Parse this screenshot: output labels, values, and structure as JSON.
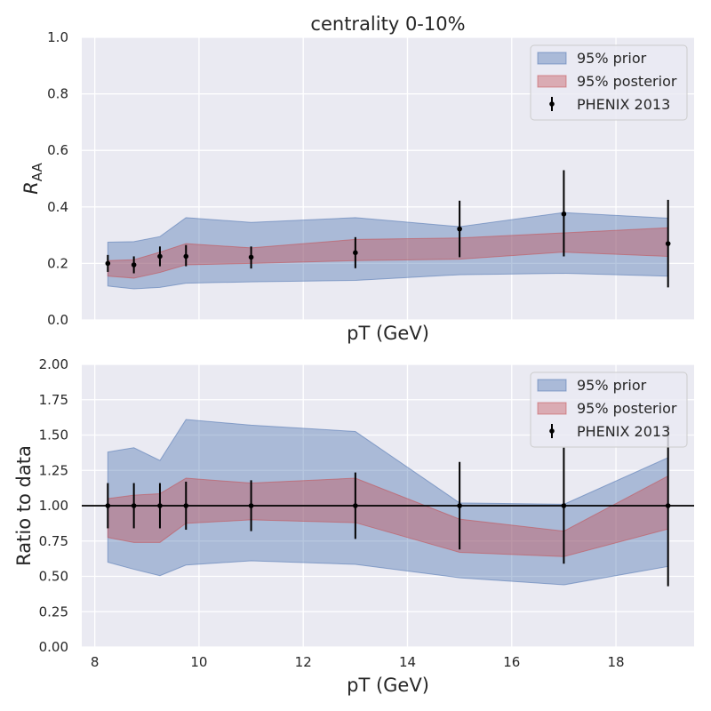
{
  "chart_data": [
    {
      "type": "area",
      "title": "centrality 0-10%",
      "xlabel": "pT (GeV)",
      "ylabel_main": "R",
      "ylabel_sub": "AA",
      "xlim": [
        7.75,
        19.5
      ],
      "ylim": [
        0,
        1.0
      ],
      "xticks": [
        8,
        10,
        12,
        14,
        16,
        18
      ],
      "show_xtick_labels": false,
      "yticks": [
        0.0,
        0.2,
        0.4,
        0.6,
        0.8,
        1.0
      ],
      "ytick_labels": [
        "0.0",
        "0.2",
        "0.4",
        "0.6",
        "0.8",
        "1.0"
      ],
      "grid": true,
      "legend_position": "top-right",
      "colors": {
        "prior": "#4c72b0",
        "posterior": "#c44e52",
        "data": "#000000",
        "background": "#eaeaf2",
        "grid": "#ffffff"
      },
      "series": [
        {
          "name": "95% prior",
          "kind": "band",
          "x": [
            8.25,
            8.75,
            9.25,
            9.75,
            11,
            13,
            15,
            17,
            19
          ],
          "lower": [
            0.12,
            0.11,
            0.115,
            0.13,
            0.135,
            0.14,
            0.16,
            0.165,
            0.155
          ],
          "upper": [
            0.275,
            0.277,
            0.295,
            0.362,
            0.345,
            0.362,
            0.33,
            0.38,
            0.36
          ]
        },
        {
          "name": "95% posterior",
          "kind": "band",
          "x": [
            8.25,
            8.75,
            9.25,
            9.75,
            11,
            13,
            15,
            17,
            19
          ],
          "lower": [
            0.155,
            0.148,
            0.168,
            0.195,
            0.2,
            0.21,
            0.215,
            0.24,
            0.225
          ],
          "upper": [
            0.21,
            0.213,
            0.24,
            0.27,
            0.255,
            0.285,
            0.29,
            0.308,
            0.326
          ]
        },
        {
          "name": "PHENIX 2013",
          "kind": "errorbar",
          "x": [
            8.25,
            8.75,
            9.25,
            9.75,
            11,
            13,
            15,
            17,
            19
          ],
          "y": [
            0.2,
            0.195,
            0.225,
            0.225,
            0.222,
            0.238,
            0.322,
            0.375,
            0.27
          ],
          "yerr_low": [
            0.03,
            0.03,
            0.035,
            0.035,
            0.04,
            0.055,
            0.1,
            0.15,
            0.155
          ],
          "yerr_high": [
            0.03,
            0.03,
            0.035,
            0.04,
            0.038,
            0.055,
            0.1,
            0.155,
            0.155
          ]
        }
      ]
    },
    {
      "type": "area",
      "title": "",
      "xlabel": "pT (GeV)",
      "ylabel_main": "Ratio to data",
      "ylabel_sub": "",
      "xlim": [
        7.75,
        19.5
      ],
      "ylim": [
        0,
        2.0
      ],
      "xticks": [
        8,
        10,
        12,
        14,
        16,
        18
      ],
      "xtick_labels": [
        "8",
        "10",
        "12",
        "14",
        "16",
        "18"
      ],
      "show_xtick_labels": true,
      "yticks": [
        0.0,
        0.25,
        0.5,
        0.75,
        1.0,
        1.25,
        1.5,
        1.75,
        2.0
      ],
      "ytick_labels": [
        "0.00",
        "0.25",
        "0.50",
        "0.75",
        "1.00",
        "1.25",
        "1.50",
        "1.75",
        "2.00"
      ],
      "reference_line": 1.0,
      "grid": true,
      "legend_position": "top-right",
      "colors": {
        "prior": "#4c72b0",
        "posterior": "#c44e52",
        "data": "#000000",
        "background": "#eaeaf2",
        "grid": "#ffffff"
      },
      "series": [
        {
          "name": "95% prior",
          "kind": "band",
          "x": [
            8.25,
            8.75,
            9.25,
            9.75,
            11,
            13,
            15,
            17,
            19
          ],
          "lower": [
            0.6,
            0.55,
            0.505,
            0.58,
            0.61,
            0.585,
            0.49,
            0.44,
            0.57
          ],
          "upper": [
            1.38,
            1.41,
            1.32,
            1.61,
            1.57,
            1.525,
            1.02,
            1.01,
            1.34
          ]
        },
        {
          "name": "95% posterior",
          "kind": "band",
          "x": [
            8.25,
            8.75,
            9.25,
            9.75,
            11,
            13,
            15,
            17,
            19
          ],
          "lower": [
            0.775,
            0.74,
            0.74,
            0.875,
            0.9,
            0.88,
            0.67,
            0.64,
            0.835
          ],
          "upper": [
            1.05,
            1.075,
            1.085,
            1.195,
            1.16,
            1.195,
            0.905,
            0.82,
            1.21
          ]
        },
        {
          "name": "PHENIX 2013",
          "kind": "errorbar",
          "x": [
            8.25,
            8.75,
            9.25,
            9.75,
            11,
            13,
            15,
            17,
            19
          ],
          "y": [
            1.0,
            1.0,
            1.0,
            1.0,
            1.0,
            1.0,
            1.0,
            1.0,
            1.0
          ],
          "yerr_low": [
            0.16,
            0.16,
            0.16,
            0.17,
            0.18,
            0.235,
            0.31,
            0.41,
            0.57
          ],
          "yerr_high": [
            0.16,
            0.16,
            0.16,
            0.17,
            0.18,
            0.235,
            0.31,
            0.41,
            0.57
          ]
        }
      ]
    }
  ]
}
